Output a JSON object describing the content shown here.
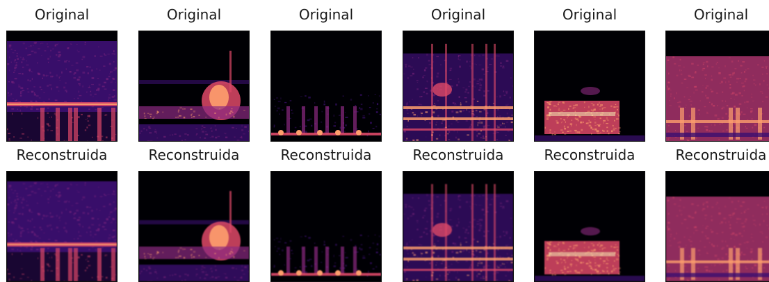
{
  "rows": [
    {
      "row_label": "Original",
      "panels": [
        {
          "title": "Original",
          "pattern": "noise-broad"
        },
        {
          "title": "Original",
          "pattern": "bright-blob-right"
        },
        {
          "title": "Original",
          "pattern": "sparse-bottom"
        },
        {
          "title": "Original",
          "pattern": "vertical-lines"
        },
        {
          "title": "Original",
          "pattern": "low-block"
        },
        {
          "title": "Original",
          "pattern": "full-warm"
        }
      ]
    },
    {
      "row_label": "Reconstruida",
      "panels": [
        {
          "title": "Reconstruida",
          "pattern": "noise-broad"
        },
        {
          "title": "Reconstruida",
          "pattern": "bright-blob-right"
        },
        {
          "title": "Reconstruida",
          "pattern": "sparse-bottom"
        },
        {
          "title": "Reconstruida",
          "pattern": "vertical-lines"
        },
        {
          "title": "Reconstruida",
          "pattern": "low-block"
        },
        {
          "title": "Reconstruida",
          "pattern": "full-warm"
        }
      ]
    }
  ],
  "colormap": [
    "#000004",
    "#3b0f70",
    "#8c2981",
    "#de4968",
    "#fe9f6d",
    "#fcfdbf"
  ]
}
